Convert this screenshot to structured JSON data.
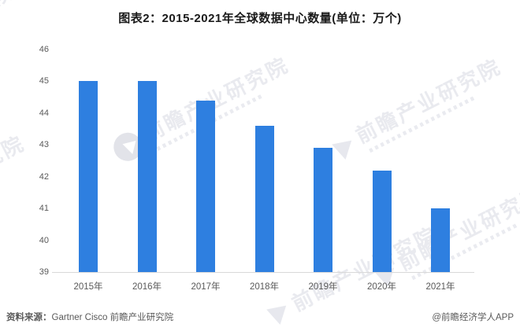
{
  "title": "图表2：2015-2021年全球数据中心数量(单位：万个)",
  "chart_data": {
    "type": "bar",
    "title": "图表2：2015-2021年全球数据中心数量(单位：万个)",
    "categories": [
      "2015年",
      "2016年",
      "2017年",
      "2018年",
      "2019年",
      "2020年",
      "2021年"
    ],
    "values": [
      45,
      45,
      44.4,
      43.6,
      42.9,
      42.2,
      41
    ],
    "unit": "万个",
    "xlabel": "",
    "ylabel": "",
    "ylim": [
      39,
      46
    ],
    "yticks": [
      39,
      40,
      41,
      42,
      43,
      44,
      45,
      46
    ],
    "grid": false,
    "legend": false,
    "bar_color": "#2e7fe0"
  },
  "colors": {
    "bar": "#2e7fe0",
    "axis_line": "#d9d9d9",
    "tick_text": "#595959",
    "title_text": "#1a1a1a",
    "watermark": "#e9eaef"
  },
  "watermark": {
    "text": "前瞻产业研究院"
  },
  "footer": {
    "source_label": "资料来源：",
    "source_text": "Gartner Cisco 前瞻产业研究院",
    "credit": "@前瞻经济学人APP"
  }
}
